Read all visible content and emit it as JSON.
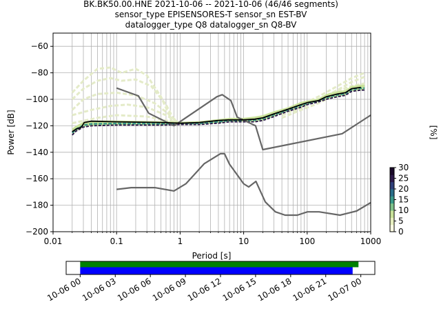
{
  "title_lines": [
    "BK.BK50.00.HNE   2021-10-06 -- 2021-10-06  (46/46 segments)",
    "sensor_type EPISENSORES-T sensor_sn EST-BV",
    "datalogger_type Q8 datalogger_sn Q8-BV"
  ],
  "chart_data": {
    "type": "line",
    "xscale": "log",
    "xlabel": "Period [s]",
    "ylabel": "Power [dB]",
    "xlim": [
      0.01,
      1000
    ],
    "ylim": [
      -200,
      -50
    ],
    "xticks": [
      {
        "v": 0.01,
        "label": "0.01"
      },
      {
        "v": 0.1,
        "label": "0.1"
      },
      {
        "v": 1,
        "label": "1"
      },
      {
        "v": 10,
        "label": "10"
      },
      {
        "v": 100,
        "label": "100"
      },
      {
        "v": 1000,
        "label": "1000"
      }
    ],
    "yticks": [
      {
        "v": -60,
        "label": "−60"
      },
      {
        "v": -80,
        "label": "−80"
      },
      {
        "v": -100,
        "label": "−100"
      },
      {
        "v": -120,
        "label": "−120"
      },
      {
        "v": -140,
        "label": "−140"
      },
      {
        "v": -160,
        "label": "−160"
      },
      {
        "v": -180,
        "label": "−180"
      },
      {
        "v": -200,
        "label": "−200"
      }
    ],
    "grid": true,
    "series": [
      {
        "role": "noise_model_high",
        "color": "#666666",
        "x": [
          0.1,
          0.22,
          0.32,
          0.8,
          3.8,
          4.6,
          6.3,
          7.9,
          15.4,
          20,
          354.8,
          1000
        ],
        "y": [
          -91.5,
          -97.4,
          -110.5,
          -120,
          -98,
          -96.5,
          -101,
          -113.5,
          -120,
          -138,
          -126,
          -112
        ]
      },
      {
        "role": "noise_model_low",
        "color": "#666666",
        "x": [
          0.1,
          0.17,
          0.4,
          0.8,
          1.24,
          2.4,
          4.3,
          5.0,
          6.0,
          10.0,
          12.0,
          15.6,
          21.9,
          31.6,
          45,
          70,
          101,
          154,
          328,
          600,
          1000
        ],
        "y": [
          -168,
          -166.7,
          -166.7,
          -169.2,
          -163.7,
          -148.6,
          -141.1,
          -141.1,
          -149,
          -163.8,
          -166.2,
          -162,
          -177.5,
          -185,
          -187.5,
          -187.5,
          -185,
          -185,
          -187.5,
          -184.4,
          -178
        ]
      },
      {
        "role": "mode",
        "color": "#000000",
        "x": [
          0.02,
          0.023,
          0.028,
          0.031,
          0.04,
          0.1,
          0.5,
          1,
          2,
          4,
          6,
          10,
          15,
          20,
          30,
          50,
          80,
          100,
          150,
          200,
          300,
          400,
          500,
          700
        ],
        "y": [
          -124.5,
          -122.5,
          -121,
          -117.5,
          -116.5,
          -117,
          -117.5,
          -118,
          -117.5,
          -116,
          -115.5,
          -115.5,
          -115,
          -114,
          -111,
          -107.5,
          -104,
          -102.5,
          -101,
          -98,
          -96,
          -95,
          -92,
          -91
        ]
      }
    ],
    "histogram_colormap": {
      "label": "[%]",
      "min": 0,
      "max": 30,
      "ticks": [
        0,
        5,
        10,
        15,
        20,
        25,
        30
      ],
      "colors": [
        "#ffffe5",
        "#e8f0c0",
        "#c9e29a",
        "#7fc28b",
        "#3a9a8a",
        "#2a6e8a",
        "#2f3f7a",
        "#2d1a4a",
        "#1a0a2a"
      ]
    },
    "psd_faint_curves": [
      {
        "x": [
          0.02,
          0.03,
          0.05,
          0.08,
          0.12,
          0.2,
          0.3,
          0.5,
          0.8
        ],
        "y": [
          -95,
          -86,
          -77,
          -76,
          -80,
          -77,
          -82,
          -98,
          -120
        ]
      },
      {
        "x": [
          0.02,
          0.03,
          0.05,
          0.08,
          0.12,
          0.2,
          0.35,
          0.6,
          0.9
        ],
        "y": [
          -100,
          -92,
          -86,
          -84,
          -86,
          -85,
          -90,
          -104,
          -120
        ]
      },
      {
        "x": [
          0.02,
          0.03,
          0.05,
          0.1,
          0.2,
          0.4,
          0.7,
          1.0
        ],
        "y": [
          -108,
          -100,
          -96,
          -95,
          -97,
          -103,
          -112,
          -119
        ]
      },
      {
        "x": [
          0.02,
          0.04,
          0.08,
          0.15,
          0.3,
          0.6,
          1.0
        ],
        "y": [
          -112,
          -108,
          -105,
          -104,
          -106,
          -112,
          -118
        ]
      },
      {
        "x": [
          0.02,
          0.05,
          0.1,
          0.3,
          0.6,
          1.0
        ],
        "y": [
          -118,
          -114,
          -112,
          -113,
          -116,
          -118
        ]
      },
      {
        "x": [
          40,
          80,
          150,
          300,
          500,
          800
        ],
        "y": [
          -110,
          -104,
          -98,
          -90,
          -84,
          -80
        ]
      },
      {
        "x": [
          40,
          80,
          150,
          300,
          500,
          800
        ],
        "y": [
          -112,
          -106,
          -100,
          -93,
          -87,
          -83
        ]
      },
      {
        "x": [
          40,
          80,
          150,
          300,
          500,
          800
        ],
        "y": [
          -114,
          -108,
          -103,
          -96,
          -91,
          -88
        ]
      },
      {
        "x": [
          60,
          120,
          250,
          500,
          800
        ],
        "y": [
          -110,
          -102,
          -95,
          -90,
          -88
        ]
      }
    ],
    "psd_dense_band": {
      "x": [
        0.02,
        0.023,
        0.03,
        0.04,
        0.1,
        0.5,
        1,
        2,
        4,
        6,
        10,
        15,
        20,
        30,
        50,
        80,
        100,
        150,
        200,
        300,
        400,
        500,
        700,
        800
      ],
      "y_low": [
        -127,
        -124,
        -121,
        -120,
        -119.5,
        -119.5,
        -119,
        -119,
        -118,
        -117,
        -117,
        -117,
        -116,
        -113,
        -109,
        -106,
        -104,
        -102,
        -100,
        -98,
        -97,
        -94,
        -93,
        -93
      ],
      "y_high": [
        -122,
        -120,
        -117,
        -116,
        -116,
        -116.5,
        -117,
        -116.5,
        -115,
        -114,
        -114,
        -113,
        -112,
        -109,
        -106,
        -102,
        -101,
        -99.5,
        -96,
        -94,
        -93,
        -90,
        -89,
        -89
      ]
    }
  },
  "time_axis": {
    "tick_labels": [
      "10-06 00",
      "10-06 03",
      "10-06 06",
      "10-06 09",
      "10-06 12",
      "10-06 15",
      "10-06 18",
      "10-06 21",
      "10-07 00"
    ],
    "tick_hours": [
      0,
      3,
      6,
      9,
      12,
      15,
      18,
      21,
      24
    ],
    "range_hours": [
      -1.2,
      25.2
    ],
    "data_coverage": {
      "start": 0,
      "end": 23.8,
      "color": "#008000"
    },
    "psd_coverage": {
      "start": 0,
      "end": 23.3,
      "color": "#0000ff"
    }
  }
}
